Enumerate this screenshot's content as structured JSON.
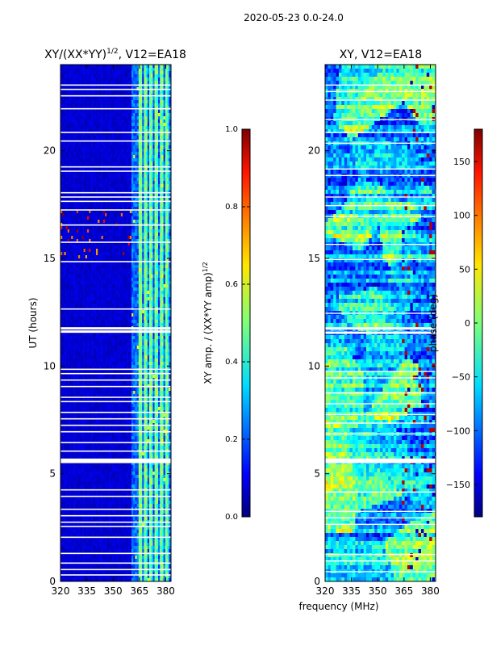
{
  "figure": {
    "suptitle": "2020-05-23 0.0-24.0",
    "xlabel_shared": "frequency (MHz)"
  },
  "colors": {
    "jet": [
      "#00007f",
      "#0000ff",
      "#007fff",
      "#00ffff",
      "#7fff7f",
      "#ffff00",
      "#ff7f00",
      "#ff0000",
      "#7f0000"
    ],
    "gap": "#ffffff",
    "axes": "#000000"
  },
  "chart_data": [
    {
      "type": "heatmap",
      "panel": "left",
      "title_main": "XY/(XX*YY)",
      "title_sup": "1/2",
      "title_tail": ", V12=EA18",
      "xlabel": "",
      "ylabel": "UT (hours)",
      "xlim": [
        320,
        383
      ],
      "ylim": [
        0,
        24
      ],
      "xticks": [
        320,
        335,
        350,
        365,
        380
      ],
      "yticks": [
        0,
        5,
        10,
        15,
        20
      ],
      "colorbar": {
        "label_main": "XY amp. / (XX*YY amp)",
        "label_sup": "1/2",
        "range": [
          0,
          1
        ],
        "ticks": [
          "0.0",
          "0.2",
          "0.4",
          "0.6",
          "0.8",
          "1.0"
        ]
      },
      "bright_channels_MHz": [
        365,
        368,
        371,
        374,
        377,
        380
      ],
      "gaps_hours": [
        0.3,
        0.55,
        0.85,
        1.3,
        2.05,
        2.55,
        2.75,
        3.05,
        3.35,
        3.95,
        4.25,
        5.55,
        5.65,
        6.05,
        6.45,
        6.95,
        7.25,
        7.55,
        7.85,
        8.35,
        8.55,
        9.05,
        9.35,
        9.65,
        9.85,
        11.6,
        11.75,
        12.65,
        14.85,
        15.75,
        16.55,
        17.25,
        17.65,
        17.85,
        18.05,
        19.05,
        19.25,
        20.45,
        20.85,
        21.95,
        22.55,
        22.85,
        23.05
      ]
    },
    {
      "type": "heatmap",
      "panel": "right",
      "title": "XY, V12=EA18",
      "xlabel": "",
      "ylabel": "",
      "xlim": [
        320,
        383
      ],
      "ylim": [
        0,
        24
      ],
      "xticks": [
        320,
        335,
        350,
        365,
        380
      ],
      "yticks": [
        0,
        5,
        10,
        15,
        20
      ],
      "colorbar": {
        "label": "phase (deg)",
        "range": [
          -180,
          180
        ],
        "ticks": [
          "150",
          "100",
          "50",
          "0",
          "−50",
          "−100",
          "−150"
        ]
      },
      "gaps_hours": [
        0.45,
        0.95,
        1.25,
        2.65,
        2.95,
        3.25,
        4.15,
        5.55,
        5.65,
        6.85,
        7.35,
        7.75,
        8.25,
        8.75,
        9.45,
        9.75,
        11.55,
        11.75,
        12.45,
        14.95,
        15.65,
        16.95,
        17.45,
        17.85,
        18.85,
        19.15,
        20.35,
        20.85,
        21.45,
        22.35,
        22.75,
        23.05
      ]
    }
  ]
}
